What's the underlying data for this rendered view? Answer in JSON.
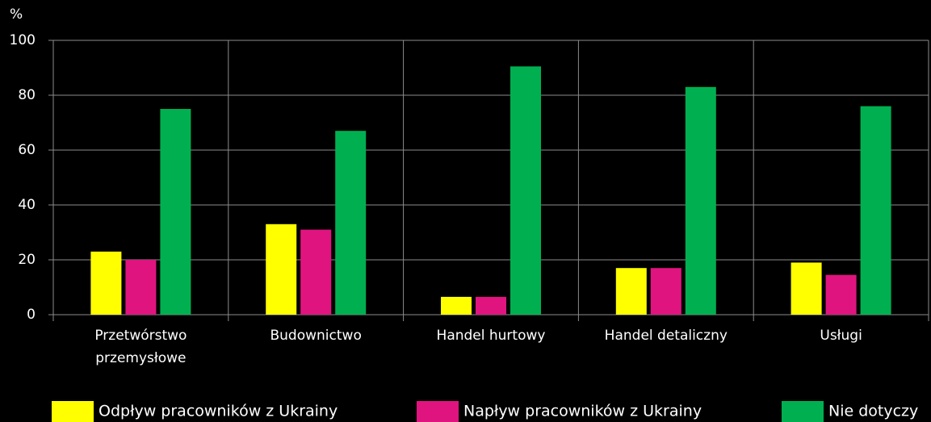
{
  "chart_data": {
    "type": "bar",
    "y_label": "%",
    "categories": [
      "Przetwórstwo przemysłowe",
      "Budownictwo",
      "Handel hurtowy",
      "Handel detaliczny",
      "Usługi"
    ],
    "series": [
      {
        "name": "Odpływ pracowników z Ukrainy",
        "color": "#ffff00",
        "values": [
          23,
          33,
          6.5,
          17,
          19
        ]
      },
      {
        "name": "Napływ pracowników z Ukrainy",
        "color": "#e0147f",
        "values": [
          20,
          31,
          6.5,
          17,
          14.5
        ]
      },
      {
        "name": "Nie dotyczy",
        "color": "#00b050",
        "values": [
          75,
          67,
          90.5,
          83,
          76
        ]
      }
    ],
    "ylim": [
      0,
      100
    ],
    "yticks": [
      0,
      20,
      40,
      60,
      80,
      100
    ],
    "grid": true,
    "legend": "bottom"
  }
}
